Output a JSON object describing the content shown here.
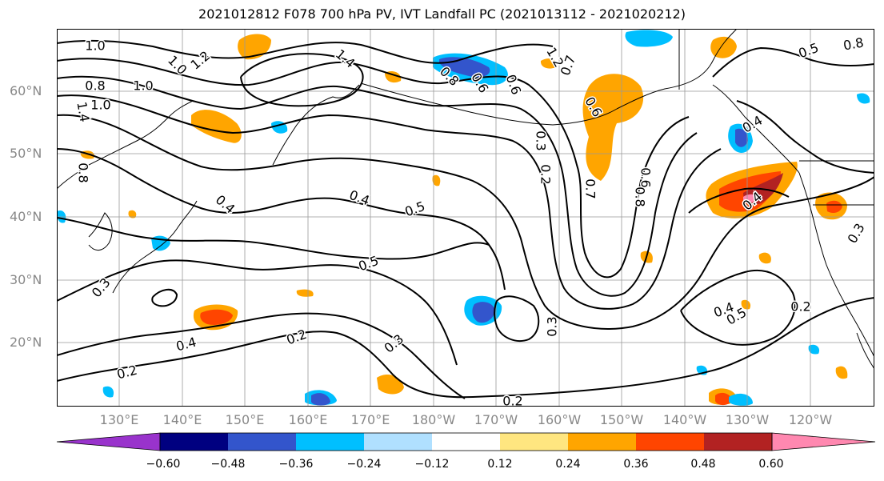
{
  "title": "2021012812 F078 700 hPa PV, IVT Landfall PC (2021013112 - 2021020212)",
  "lat_labels": [
    "60°N",
    "50°N",
    "40°N",
    "30°N",
    "20°N"
  ],
  "lon_labels": [
    "130°E",
    "140°E",
    "150°E",
    "160°E",
    "170°E",
    "180°W",
    "170°W",
    "160°W",
    "150°W",
    "140°W",
    "130°W",
    "120°W"
  ],
  "colorbar": {
    "colors": [
      "#9933cc",
      "#000080",
      "#3355cc",
      "#00bfff",
      "#b0e0ff",
      "#ffffff",
      "#ffe680",
      "#ffa500",
      "#ff4500",
      "#b22222",
      "#ff88b0"
    ],
    "ticks": [
      "−0.60",
      "−0.48",
      "−0.36",
      "−0.24",
      "−0.12",
      "0.12",
      "0.24",
      "0.36",
      "0.48",
      "0.60"
    ]
  },
  "contour_labels": [
    "1.0",
    "1.0",
    "1.0",
    "0.8",
    "1.0",
    "1.4",
    "1.2",
    "1.4",
    "0.8",
    "0.6",
    "1.2",
    "0.7",
    "0.8",
    "0.6",
    "0.4",
    "0.4",
    "0.4",
    "0.5",
    "0.3",
    "0.2",
    "0.3",
    "0.2",
    "0.2",
    "0.5",
    "0.6",
    "0.8",
    "0.7",
    "0.4",
    "0.4",
    "0.5",
    "0.3",
    "0.2",
    "0.2",
    "0.4",
    "0.6",
    "0.3",
    "0.5",
    "0.3",
    "0.8"
  ]
}
